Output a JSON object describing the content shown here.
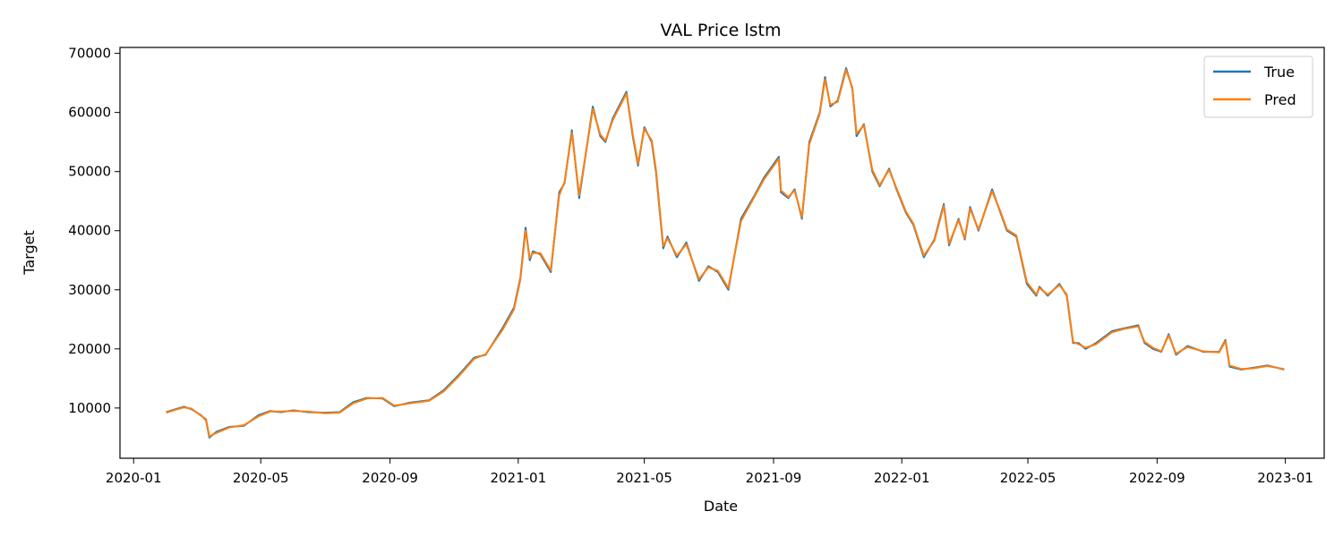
{
  "chart_data": {
    "type": "line",
    "title": "VAL Price lstm",
    "xlabel": "Date",
    "ylabel": "Target",
    "x_ticks": [
      "2020-01",
      "2020-05",
      "2020-09",
      "2021-01",
      "2021-05",
      "2021-09",
      "2022-01",
      "2022-05",
      "2022-09",
      "2023-01"
    ],
    "y_ticks": [
      10000,
      20000,
      30000,
      40000,
      50000,
      60000,
      70000
    ],
    "xlim": [
      "2019-12-19",
      "2023-02-07"
    ],
    "ylim": [
      1500,
      71000
    ],
    "grid": false,
    "legend_position": "top-right",
    "legend": [
      "True",
      "Pred"
    ],
    "colors": {
      "True": "#1f77b4",
      "Pred": "#ff7f0e"
    },
    "x": [
      "2020-02-01",
      "2020-02-10",
      "2020-02-18",
      "2020-02-25",
      "2020-03-05",
      "2020-03-10",
      "2020-03-13",
      "2020-03-20",
      "2020-04-01",
      "2020-04-15",
      "2020-04-29",
      "2020-05-10",
      "2020-05-20",
      "2020-06-01",
      "2020-06-15",
      "2020-07-01",
      "2020-07-15",
      "2020-07-28",
      "2020-08-10",
      "2020-08-25",
      "2020-09-05",
      "2020-09-20",
      "2020-10-08",
      "2020-10-22",
      "2020-11-05",
      "2020-11-20",
      "2020-12-01",
      "2020-12-17",
      "2020-12-28",
      "2021-01-03",
      "2021-01-08",
      "2021-01-12",
      "2021-01-15",
      "2021-01-22",
      "2021-02-01",
      "2021-02-09",
      "2021-02-14",
      "2021-02-21",
      "2021-02-28",
      "2021-03-13",
      "2021-03-20",
      "2021-03-25",
      "2021-04-01",
      "2021-04-14",
      "2021-04-20",
      "2021-04-25",
      "2021-05-01",
      "2021-05-08",
      "2021-05-12",
      "2021-05-19",
      "2021-05-23",
      "2021-06-01",
      "2021-06-10",
      "2021-06-22",
      "2021-07-01",
      "2021-07-10",
      "2021-07-20",
      "2021-08-01",
      "2021-08-14",
      "2021-08-23",
      "2021-09-06",
      "2021-09-08",
      "2021-09-15",
      "2021-09-21",
      "2021-09-28",
      "2021-10-05",
      "2021-10-15",
      "2021-10-20",
      "2021-10-25",
      "2021-11-01",
      "2021-11-09",
      "2021-11-15",
      "2021-11-19",
      "2021-11-26",
      "2021-12-04",
      "2021-12-11",
      "2021-12-20",
      "2021-12-27",
      "2022-01-05",
      "2022-01-12",
      "2022-01-22",
      "2022-02-01",
      "2022-02-10",
      "2022-02-15",
      "2022-02-24",
      "2022-03-02",
      "2022-03-07",
      "2022-03-15",
      "2022-03-28",
      "2022-04-05",
      "2022-04-11",
      "2022-04-20",
      "2022-04-30",
      "2022-05-09",
      "2022-05-12",
      "2022-05-20",
      "2022-05-31",
      "2022-06-07",
      "2022-06-13",
      "2022-06-18",
      "2022-06-25",
      "2022-07-05",
      "2022-07-20",
      "2022-08-01",
      "2022-08-14",
      "2022-08-20",
      "2022-08-28",
      "2022-09-05",
      "2022-09-12",
      "2022-09-19",
      "2022-09-30",
      "2022-10-15",
      "2022-10-30",
      "2022-11-05",
      "2022-11-09",
      "2022-11-20",
      "2022-12-01",
      "2022-12-15",
      "2022-12-31"
    ],
    "series": [
      {
        "name": "True",
        "values": [
          9300,
          9800,
          10200,
          9800,
          8800,
          7900,
          5000,
          6000,
          6800,
          7000,
          8800,
          9500,
          9300,
          9600,
          9300,
          9200,
          9300,
          11000,
          11700,
          11600,
          10300,
          10900,
          11300,
          13000,
          15500,
          18500,
          19000,
          23500,
          27000,
          32000,
          40500,
          35000,
          36500,
          36000,
          33000,
          46500,
          48000,
          57000,
          45500,
          61000,
          56000,
          55000,
          59000,
          63500,
          56000,
          51000,
          57500,
          55000,
          50000,
          37000,
          39000,
          35500,
          38000,
          31500,
          34000,
          33000,
          30000,
          42000,
          46000,
          49000,
          52500,
          46500,
          45500,
          47000,
          42000,
          55000,
          60000,
          66000,
          61000,
          62000,
          67500,
          64000,
          56000,
          58000,
          50000,
          47500,
          50500,
          47000,
          43000,
          41000,
          35500,
          38500,
          44500,
          37500,
          42000,
          38500,
          44000,
          40000,
          47000,
          43000,
          40000,
          39000,
          31000,
          29000,
          30500,
          29000,
          31000,
          29000,
          21000,
          21000,
          20000,
          21000,
          23000,
          23500,
          24000,
          21000,
          20000,
          19500,
          22500,
          19000,
          20500,
          19500,
          19500,
          21500,
          17000,
          16500,
          16800,
          17200,
          16500
        ]
      },
      {
        "name": "Pred",
        "values": [
          9200,
          9700,
          10100,
          9900,
          8700,
          8100,
          5200,
          5800,
          6700,
          7100,
          8600,
          9400,
          9400,
          9500,
          9400,
          9100,
          9200,
          10800,
          11600,
          11700,
          10400,
          10800,
          11200,
          12800,
          15300,
          18300,
          19100,
          23200,
          26700,
          31700,
          40000,
          35400,
          36200,
          36200,
          33300,
          46000,
          48200,
          56600,
          46000,
          60600,
          56300,
          55200,
          58700,
          63200,
          56400,
          51300,
          57200,
          55300,
          50400,
          37400,
          38700,
          35800,
          37700,
          31800,
          33800,
          33200,
          30300,
          41600,
          45800,
          48700,
          52200,
          46800,
          45700,
          46800,
          42300,
          54600,
          59800,
          65600,
          61300,
          61800,
          67200,
          64200,
          56400,
          57800,
          50300,
          47700,
          50300,
          47200,
          43200,
          41200,
          35800,
          38300,
          44200,
          37800,
          41800,
          38700,
          43700,
          40200,
          46700,
          43200,
          40200,
          39200,
          31300,
          29200,
          30300,
          29200,
          30800,
          29200,
          21200,
          20800,
          20200,
          20800,
          22800,
          23400,
          23800,
          21200,
          20200,
          19600,
          22300,
          19200,
          20300,
          19600,
          19400,
          21300,
          17200,
          16600,
          16700,
          17100,
          16600
        ]
      }
    ]
  }
}
